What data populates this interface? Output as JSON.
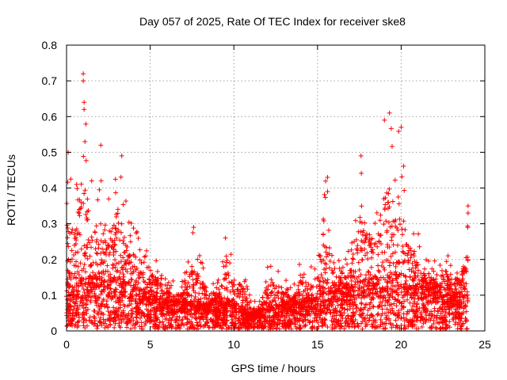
{
  "chart_data": {
    "type": "scatter",
    "title": "Day 057 of 2025, Rate Of TEC Index for receiver ske8",
    "xlabel": "GPS time / hours",
    "ylabel": "ROTI / TECUs",
    "xlim": [
      0,
      25
    ],
    "ylim": [
      0,
      0.8
    ],
    "xticks": [
      0,
      5,
      10,
      15,
      20,
      25
    ],
    "yticks": [
      0,
      0.1,
      0.2,
      0.3,
      0.4,
      0.5,
      0.6,
      0.7,
      0.8
    ],
    "xtick_labels": [
      "0",
      "5",
      "10",
      "15",
      "20",
      "25"
    ],
    "ytick_labels": [
      "0",
      "0.1",
      "0.2",
      "0.3",
      "0.4",
      "0.5",
      "0.6",
      "0.7",
      "0.8"
    ],
    "grid": true,
    "marker": "+",
    "color": "#ff0000",
    "series": [
      {
        "name": "ROTI",
        "envelope": [
          {
            "x": 0.0,
            "y": 0.5
          },
          {
            "x": 0.5,
            "y": 0.4
          },
          {
            "x": 1.0,
            "y": 0.72
          },
          {
            "x": 1.5,
            "y": 0.42
          },
          {
            "x": 2.0,
            "y": 0.44
          },
          {
            "x": 2.5,
            "y": 0.4
          },
          {
            "x": 3.0,
            "y": 0.49
          },
          {
            "x": 3.5,
            "y": 0.38
          },
          {
            "x": 4.0,
            "y": 0.3
          },
          {
            "x": 4.5,
            "y": 0.29
          },
          {
            "x": 5.0,
            "y": 0.25
          },
          {
            "x": 5.5,
            "y": 0.2
          },
          {
            "x": 6.0,
            "y": 0.15
          },
          {
            "x": 6.5,
            "y": 0.14
          },
          {
            "x": 7.0,
            "y": 0.14
          },
          {
            "x": 7.5,
            "y": 0.29
          },
          {
            "x": 8.0,
            "y": 0.22
          },
          {
            "x": 8.5,
            "y": 0.15
          },
          {
            "x": 9.0,
            "y": 0.14
          },
          {
            "x": 9.5,
            "y": 0.26
          },
          {
            "x": 10.0,
            "y": 0.21
          },
          {
            "x": 10.5,
            "y": 0.19
          },
          {
            "x": 11.0,
            "y": 0.1
          },
          {
            "x": 11.5,
            "y": 0.07
          },
          {
            "x": 12.0,
            "y": 0.23
          },
          {
            "x": 12.5,
            "y": 0.2
          },
          {
            "x": 13.0,
            "y": 0.15
          },
          {
            "x": 13.5,
            "y": 0.12
          },
          {
            "x": 14.0,
            "y": 0.21
          },
          {
            "x": 14.5,
            "y": 0.18
          },
          {
            "x": 15.0,
            "y": 0.22
          },
          {
            "x": 15.5,
            "y": 0.43
          },
          {
            "x": 16.0,
            "y": 0.22
          },
          {
            "x": 16.5,
            "y": 0.2
          },
          {
            "x": 17.0,
            "y": 0.24
          },
          {
            "x": 17.5,
            "y": 0.49
          },
          {
            "x": 18.0,
            "y": 0.42
          },
          {
            "x": 18.5,
            "y": 0.35
          },
          {
            "x": 19.0,
            "y": 0.59
          },
          {
            "x": 19.3,
            "y": 0.61
          },
          {
            "x": 19.5,
            "y": 0.54
          },
          {
            "x": 20.0,
            "y": 0.57
          },
          {
            "x": 20.5,
            "y": 0.3
          },
          {
            "x": 21.0,
            "y": 0.28
          },
          {
            "x": 21.5,
            "y": 0.22
          },
          {
            "x": 22.0,
            "y": 0.2
          },
          {
            "x": 22.5,
            "y": 0.25
          },
          {
            "x": 23.0,
            "y": 0.2
          },
          {
            "x": 23.5,
            "y": 0.2
          },
          {
            "x": 24.0,
            "y": 0.35
          }
        ],
        "baseline": [
          {
            "x": 0.0,
            "y": 0.08
          },
          {
            "x": 2.0,
            "y": 0.1
          },
          {
            "x": 4.0,
            "y": 0.08
          },
          {
            "x": 6.0,
            "y": 0.05
          },
          {
            "x": 8.0,
            "y": 0.05
          },
          {
            "x": 10.0,
            "y": 0.05
          },
          {
            "x": 11.0,
            "y": 0.03
          },
          {
            "x": 12.0,
            "y": 0.04
          },
          {
            "x": 14.0,
            "y": 0.05
          },
          {
            "x": 16.0,
            "y": 0.07
          },
          {
            "x": 18.0,
            "y": 0.09
          },
          {
            "x": 20.0,
            "y": 0.1
          },
          {
            "x": 22.0,
            "y": 0.08
          },
          {
            "x": 24.0,
            "y": 0.06
          }
        ],
        "outliers": [
          {
            "x": 1.0,
            "y": 0.72
          },
          {
            "x": 1.0,
            "y": 0.7
          },
          {
            "x": 1.05,
            "y": 0.64
          },
          {
            "x": 1.05,
            "y": 0.62
          },
          {
            "x": 1.1,
            "y": 0.53
          },
          {
            "x": 0.1,
            "y": 0.5
          },
          {
            "x": 2.05,
            "y": 0.52
          },
          {
            "x": 3.3,
            "y": 0.49
          },
          {
            "x": 15.6,
            "y": 0.43
          },
          {
            "x": 15.6,
            "y": 0.39
          },
          {
            "x": 17.6,
            "y": 0.49
          },
          {
            "x": 19.0,
            "y": 0.59
          },
          {
            "x": 19.3,
            "y": 0.61
          },
          {
            "x": 20.0,
            "y": 0.57
          },
          {
            "x": 7.6,
            "y": 0.29
          },
          {
            "x": 9.5,
            "y": 0.26
          },
          {
            "x": 24.0,
            "y": 0.35
          },
          {
            "x": 24.0,
            "y": 0.33
          }
        ]
      }
    ]
  }
}
